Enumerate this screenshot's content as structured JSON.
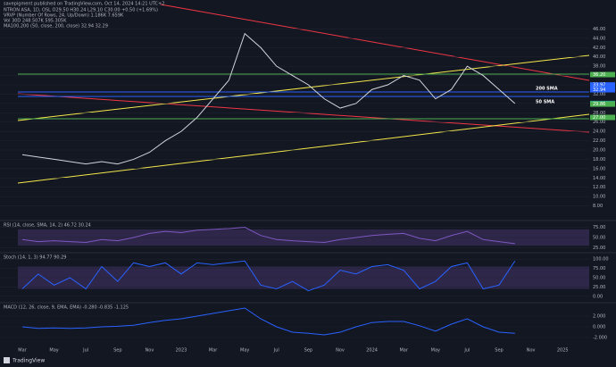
{
  "header": {
    "published": "savepigment published on TradingView.com, Oct 14, 2024 14:21 UTC+2",
    "logo": "TradingView"
  },
  "chart_data": [
    {
      "type": "line",
      "title": "NTRON ASA, 1D, OSL  O29.50 H30.24 L29.10 C30.00 +0.50 (+1.69%)",
      "subtitles": [
        "VRVP (Number Of Rows, 24, Up/Down)  1.186K  7.659K",
        "Vol 30D  248.507K  595.305K",
        "MA100,200 (50, close, 200, close)  32.94  32.29"
      ],
      "categories": [
        "Mar",
        null,
        "May",
        null,
        "Jul",
        null,
        "Sep",
        null,
        "Nov",
        null,
        "2023",
        null,
        "Mar",
        null,
        "May",
        null,
        "Jul",
        null,
        "Sep",
        null,
        "Nov",
        null,
        "2024",
        null,
        "Mar",
        null,
        "May",
        null,
        "Jul",
        null,
        "Sep",
        null,
        "Nov",
        null,
        "2025"
      ],
      "series": [
        {
          "color": "#d1d4dc",
          "values": [
            19,
            18.5,
            18,
            17.5,
            17,
            17.5,
            17,
            18,
            19.5,
            22,
            24,
            27,
            31,
            35,
            45,
            42,
            38,
            36,
            34,
            31,
            29,
            30,
            33,
            34,
            36,
            35,
            31,
            33,
            38,
            36,
            33,
            30,
            null,
            null,
            null
          ]
        }
      ],
      "ylim": [
        6,
        48
      ],
      "yticks": [
        {
          "value": 46,
          "label": "46.00"
        },
        {
          "value": 44,
          "label": "44.00"
        },
        {
          "value": 42,
          "label": "42.00"
        },
        {
          "value": 40,
          "label": "40.00"
        },
        {
          "value": 38,
          "label": "38.00"
        },
        {
          "value": 36,
          "label": "36.00"
        },
        {
          "value": 34,
          "label": "34.00"
        },
        {
          "value": 32,
          "label": "32.00"
        },
        {
          "value": 30,
          "label": "30.00"
        },
        {
          "value": 28,
          "label": "28.00"
        },
        {
          "value": 26,
          "label": "26.00"
        },
        {
          "value": 24,
          "label": "24.00"
        },
        {
          "value": 22,
          "label": "22.00"
        },
        {
          "value": 20,
          "label": "20.00"
        },
        {
          "value": 18,
          "label": "18.00"
        },
        {
          "value": 16,
          "label": "16.00"
        },
        {
          "value": 14,
          "label": "14.00"
        },
        {
          "value": 12,
          "label": "12.00"
        },
        {
          "value": 10,
          "label": "10.00"
        },
        {
          "value": 8,
          "label": "8.00"
        }
      ],
      "price_labels": [
        {
          "value": 36.2,
          "label": "36.20",
          "color": "#4caf50"
        },
        {
          "value": 33.97,
          "label": "33.97",
          "color": "#2962ff"
        },
        {
          "value": 32.94,
          "label": "32.94",
          "color": "#2962ff"
        },
        {
          "value": 30,
          "label": "30.00",
          "color": "#26a69a"
        },
        {
          "value": 29.86,
          "label": "29.86",
          "color": "#4caf50"
        },
        {
          "value": 27,
          "label": "27.00",
          "color": "#4caf50"
        }
      ],
      "annotations": [
        "200 SMA",
        "50 SMA"
      ],
      "grid": true
    },
    {
      "type": "line",
      "title": "RSI (14, close, SMA, 14, 2)  46.72  30.24",
      "series": [
        {
          "color": "#7e57c2",
          "values": [
            45,
            40,
            42,
            40,
            38,
            45,
            42,
            50,
            60,
            65,
            62,
            68,
            70,
            72,
            75,
            55,
            45,
            42,
            40,
            38,
            45,
            50,
            55,
            58,
            60,
            48,
            42,
            55,
            65,
            45,
            40,
            35,
            null,
            null,
            null
          ]
        }
      ],
      "ylim": [
        15,
        85
      ],
      "yticks": [
        {
          "value": 75,
          "label": "75.00"
        },
        {
          "value": 50,
          "label": "50.00"
        },
        {
          "value": 25,
          "label": "25.00"
        }
      ],
      "band": [
        30,
        70
      ]
    },
    {
      "type": "line",
      "title": "Stoch (14, 1, 3)  94.77  90.29",
      "series": [
        {
          "color": "#2962ff",
          "values": [
            20,
            60,
            30,
            50,
            20,
            80,
            40,
            90,
            80,
            90,
            60,
            90,
            85,
            90,
            95,
            30,
            20,
            40,
            15,
            30,
            70,
            60,
            80,
            85,
            70,
            20,
            40,
            80,
            90,
            20,
            30,
            95,
            null,
            null,
            null
          ]
        }
      ],
      "ylim": [
        -10,
        110
      ],
      "yticks": [
        {
          "value": 100,
          "label": "100.00"
        },
        {
          "value": 75,
          "label": "75.00"
        },
        {
          "value": 50,
          "label": "50.00"
        },
        {
          "value": 25,
          "label": "25.00"
        },
        {
          "value": 0,
          "label": "0.00"
        }
      ],
      "band": [
        20,
        80
      ]
    },
    {
      "type": "line",
      "title": "MACD (12, 26, close, 9, EMA, EMA)  -0.280  -0.835  -1.125",
      "series": [
        {
          "color": "#2962ff",
          "values": [
            0,
            -0.3,
            -0.2,
            -0.3,
            -0.2,
            0,
            0.1,
            0.3,
            0.8,
            1.2,
            1.5,
            2,
            2.5,
            3,
            3.5,
            1.5,
            0,
            -1,
            -1.2,
            -1.5,
            -1,
            0,
            0.8,
            1,
            1,
            0.2,
            -0.8,
            0.5,
            1.5,
            0,
            -1,
            -1.2,
            null,
            null,
            null
          ]
        }
      ],
      "ylim": [
        -3,
        4
      ],
      "yticks": [
        {
          "value": 2,
          "label": "2.000"
        },
        {
          "value": 0,
          "label": "0.000"
        },
        {
          "value": -2,
          "label": "-2.000"
        }
      ]
    }
  ]
}
